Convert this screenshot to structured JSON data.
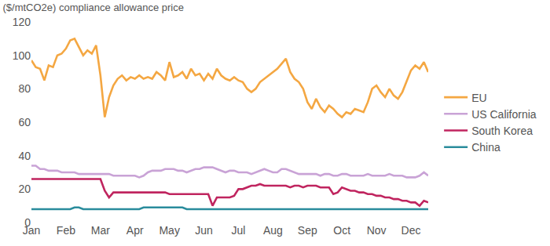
{
  "chart_data": {
    "type": "line",
    "title": "($/mtCO2e) compliance allowance price",
    "categories": [
      "Jan",
      null,
      null,
      null,
      null,
      null,
      null,
      null,
      "Feb",
      null,
      null,
      null,
      null,
      null,
      null,
      null,
      "Mar",
      null,
      null,
      null,
      null,
      null,
      null,
      null,
      "Apr",
      null,
      null,
      null,
      null,
      null,
      null,
      null,
      "May",
      null,
      null,
      null,
      null,
      null,
      null,
      null,
      "Jun",
      null,
      null,
      null,
      null,
      null,
      null,
      null,
      "Jul",
      null,
      null,
      null,
      null,
      null,
      null,
      null,
      "Aug",
      null,
      null,
      null,
      null,
      null,
      null,
      null,
      "Sep",
      null,
      null,
      null,
      null,
      null,
      null,
      null,
      "Oct",
      null,
      null,
      null,
      null,
      null,
      null,
      null,
      "Nov",
      null,
      null,
      null,
      null,
      null,
      null,
      null,
      "Dec",
      null,
      null,
      null,
      null
    ],
    "series": [
      {
        "name": "EU",
        "color": "#f4a742",
        "values": [
          97,
          93,
          92,
          85,
          94,
          93,
          100,
          101,
          104,
          109,
          110,
          105,
          100,
          103,
          101,
          106,
          88,
          63,
          75,
          82,
          86,
          88,
          85,
          87,
          86,
          88,
          86,
          87,
          86,
          90,
          88,
          85,
          96,
          87,
          88,
          90,
          86,
          92,
          88,
          89,
          85,
          89,
          86,
          92,
          88,
          86,
          85,
          87,
          85,
          84,
          80,
          78,
          80,
          84,
          86,
          88,
          90,
          92,
          95,
          98,
          90,
          86,
          84,
          80,
          72,
          68,
          74,
          69,
          66,
          70,
          68,
          65,
          63,
          66,
          65,
          68,
          67,
          66,
          72,
          80,
          82,
          78,
          75,
          80,
          76,
          74,
          78,
          85,
          91,
          94,
          92,
          96,
          90
        ]
      },
      {
        "name": "US California",
        "color": "#c9a3d6",
        "values": [
          34,
          34,
          32,
          32,
          31,
          31,
          31,
          30,
          30,
          30,
          30,
          29,
          29,
          29,
          29,
          29,
          29,
          29,
          29,
          28,
          28,
          28,
          28,
          28,
          28,
          27,
          28,
          30,
          31,
          31,
          31,
          32,
          32,
          32,
          31,
          31,
          30,
          31,
          32,
          32,
          33,
          33,
          33,
          32,
          31,
          30,
          31,
          31,
          30,
          30,
          30,
          29,
          30,
          31,
          32,
          31,
          30,
          30,
          32,
          32,
          31,
          30,
          29,
          29,
          29,
          29,
          29,
          28,
          29,
          29,
          28,
          28,
          29,
          29,
          28,
          28,
          28,
          28,
          29,
          28,
          28,
          28,
          28,
          29,
          28,
          28,
          28,
          27,
          27,
          27,
          28,
          30,
          28
        ]
      },
      {
        "name": "South Korea",
        "color": "#c0255f",
        "values": [
          26,
          26,
          26,
          26,
          26,
          26,
          26,
          26,
          26,
          26,
          26,
          26,
          26,
          26,
          26,
          26,
          26,
          19,
          15,
          18,
          18,
          18,
          18,
          18,
          18,
          18,
          18,
          18,
          18,
          18,
          18,
          18,
          17,
          17,
          17,
          17,
          17,
          17,
          17,
          17,
          17,
          17,
          10,
          15,
          15,
          15,
          15,
          16,
          20,
          20,
          21,
          22,
          22,
          23,
          22,
          22,
          22,
          22,
          22,
          22,
          21,
          22,
          22,
          21,
          22,
          22,
          22,
          21,
          21,
          21,
          17,
          18,
          21,
          20,
          19,
          19,
          18,
          18,
          17,
          17,
          16,
          16,
          15,
          15,
          14,
          14,
          13,
          13,
          12,
          12,
          10,
          13,
          12
        ]
      },
      {
        "name": "China",
        "color": "#2a8c9c",
        "values": [
          8,
          8,
          8,
          8,
          8,
          8,
          8,
          8,
          8,
          8,
          9,
          9,
          8,
          8,
          8,
          8,
          8,
          8,
          8,
          8,
          8,
          8,
          8,
          8,
          8,
          8,
          9,
          9,
          9,
          9,
          9,
          9,
          9,
          9,
          9,
          9,
          8,
          8,
          8,
          8,
          8,
          8,
          8,
          8,
          8,
          8,
          8,
          8,
          8,
          8,
          8,
          8,
          8,
          8,
          8,
          8,
          8,
          8,
          8,
          8,
          8,
          8,
          8,
          8,
          8,
          8,
          8,
          8,
          8,
          8,
          8,
          8,
          8,
          8,
          8,
          8,
          8,
          8,
          8,
          8,
          8,
          8,
          8,
          8,
          8,
          8,
          8,
          8,
          8,
          8,
          8,
          8,
          8
        ]
      }
    ],
    "ylim": [
      0,
      120
    ],
    "yticks": [
      0,
      20,
      40,
      60,
      80,
      100,
      120
    ],
    "grid": false,
    "legend": "right"
  }
}
